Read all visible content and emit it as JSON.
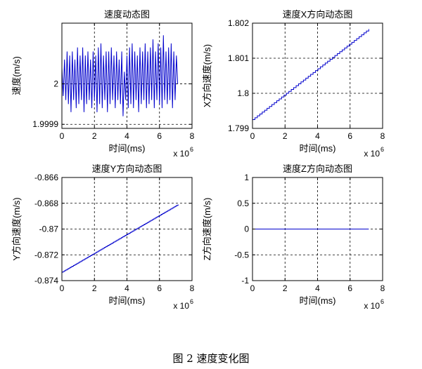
{
  "figure": {
    "caption": "图 2 速度变化图"
  },
  "chart_data": [
    {
      "type": "line",
      "title": "速度动态图",
      "xlabel": "时间(ms)",
      "ylabel": "速度(m/s)",
      "xlim": [
        0,
        8
      ],
      "ylim": [
        1.99989,
        2.00015
      ],
      "x_multiplier": "x 10",
      "x_multiplier_exp": "6",
      "xticks": [
        0,
        2,
        4,
        6,
        8
      ],
      "xtick_labels": [
        "0",
        "2",
        "4",
        "6",
        "8"
      ],
      "yticks": [
        1.9999,
        2.0
      ],
      "ytick_labels": [
        "1.9999",
        "2"
      ],
      "grid": true,
      "line_color": "#0000cc",
      "series": [
        {
          "x": [
            0.0,
            0.08,
            0.16,
            0.24,
            0.32,
            0.4,
            0.48,
            0.56,
            0.64,
            0.72,
            0.8,
            0.88,
            0.96,
            1.04,
            1.12,
            1.2,
            1.28,
            1.36,
            1.44,
            1.52,
            1.6,
            1.68,
            1.76,
            1.84,
            1.92,
            2.0,
            2.08,
            2.16,
            2.24,
            2.32,
            2.4,
            2.48,
            2.56,
            2.64,
            2.72,
            2.8,
            2.88,
            2.96,
            3.04,
            3.12,
            3.2,
            3.28,
            3.36,
            3.44,
            3.52,
            3.6,
            3.68,
            3.76,
            3.84,
            3.92,
            4.0,
            4.08,
            4.16,
            4.24,
            4.32,
            4.4,
            4.48,
            4.56,
            4.64,
            4.72,
            4.8,
            4.88,
            4.96,
            5.04,
            5.12,
            5.2,
            5.28,
            5.36,
            5.44,
            5.52,
            5.6,
            5.68,
            5.76,
            5.84,
            5.92,
            6.0,
            6.08,
            6.16,
            6.24,
            6.32,
            6.4,
            6.48,
            6.56,
            6.64,
            6.72,
            6.8,
            6.88,
            6.96,
            7.04,
            7.12
          ],
          "y": [
            2.00004,
            1.99997,
            2.00006,
            1.99996,
            2.00008,
            1.99995,
            2.00007,
            1.99993,
            2.00008,
            1.99996,
            2.00006,
            1.99994,
            2.00009,
            1.99995,
            2.00007,
            1.99996,
            2.00009,
            1.99993,
            2.00007,
            1.99995,
            2.00008,
            1.99996,
            2.00006,
            1.99994,
            2.00008,
            1.99996,
            2.00007,
            1.99993,
            2.00009,
            1.99995,
            2.0001,
            1.99994,
            2.00007,
            1.99996,
            2.00008,
            1.99993,
            2.00008,
            1.99995,
            2.00009,
            1.99996,
            2.00007,
            1.99994,
            2.00008,
            1.99996,
            2.00006,
            1.99995,
            2.00008,
            1.99992,
            2.00003,
            1.99996,
            2.00007,
            1.99994,
            2.00009,
            1.99995,
            2.0001,
            1.99994,
            2.00008,
            1.99996,
            2.00007,
            1.99993,
            2.00009,
            1.99995,
            2.00008,
            1.99996,
            2.0001,
            1.99994,
            2.00008,
            1.99995,
            2.00009,
            1.99996,
            2.00011,
            1.99994,
            2.00008,
            1.99996,
            2.0001,
            1.99995,
            2.00009,
            1.99994,
            2.00012,
            1.99996,
            2.00008,
            1.99995,
            2.00009,
            1.99996,
            2.0001,
            1.99994,
            2.00008,
            1.99996,
            2.00007,
            2.0
          ]
        }
      ]
    },
    {
      "type": "line",
      "title": "速度X方向动态图",
      "xlabel": "时间(ms)",
      "ylabel": "X方向速度(m/s)",
      "xlim": [
        0,
        8
      ],
      "ylim": [
        1.799,
        1.802
      ],
      "x_multiplier": "x 10",
      "x_multiplier_exp": "6",
      "xticks": [
        0,
        2,
        4,
        6,
        8
      ],
      "xtick_labels": [
        "0",
        "2",
        "4",
        "6",
        "8"
      ],
      "yticks": [
        1.799,
        1.8,
        1.801,
        1.802
      ],
      "ytick_labels": [
        "1.799",
        "1.8",
        "1.801",
        "1.802"
      ],
      "grid": true,
      "line_color": "#0000cc",
      "series": [
        {
          "x": [
            0,
            7.15
          ],
          "y": [
            1.79925,
            1.80183
          ],
          "style": "staircase",
          "steps": 48
        }
      ]
    },
    {
      "type": "line",
      "title": "速度Y方向动态图",
      "xlabel": "时间(ms)",
      "ylabel": "Y方向速度(m/s)",
      "xlim": [
        0,
        8
      ],
      "ylim": [
        -0.874,
        -0.866
      ],
      "x_multiplier": "x 10",
      "x_multiplier_exp": "6",
      "xticks": [
        0,
        2,
        4,
        6,
        8
      ],
      "xtick_labels": [
        "0",
        "2",
        "4",
        "6",
        "8"
      ],
      "yticks": [
        -0.874,
        -0.872,
        -0.87,
        -0.868,
        -0.866
      ],
      "ytick_labels": [
        "-0.874",
        "-0.872",
        "-0.87",
        "-0.868",
        "-0.866"
      ],
      "grid": true,
      "line_color": "#0000cc",
      "series": [
        {
          "x": [
            0,
            7.15
          ],
          "y": [
            -0.87335,
            -0.8681
          ],
          "style": "staircase",
          "steps": 90
        }
      ]
    },
    {
      "type": "line",
      "title": "速度Z方向动态图",
      "xlabel": "时间(ms)",
      "ylabel": "Z方向速度(m/s)",
      "xlim": [
        0,
        8
      ],
      "ylim": [
        -1,
        1
      ],
      "x_multiplier": "x 10",
      "x_multiplier_exp": "6",
      "xticks": [
        0,
        2,
        4,
        6,
        8
      ],
      "xtick_labels": [
        "0",
        "2",
        "4",
        "6",
        "8"
      ],
      "yticks": [
        -1,
        -0.5,
        0,
        0.5,
        1
      ],
      "ytick_labels": [
        "-1",
        "-0.5",
        "0",
        "0.5",
        "1"
      ],
      "grid": true,
      "line_color": "#0000cc",
      "series": [
        {
          "x": [
            0,
            7.15
          ],
          "y": [
            0,
            0
          ]
        }
      ]
    }
  ]
}
